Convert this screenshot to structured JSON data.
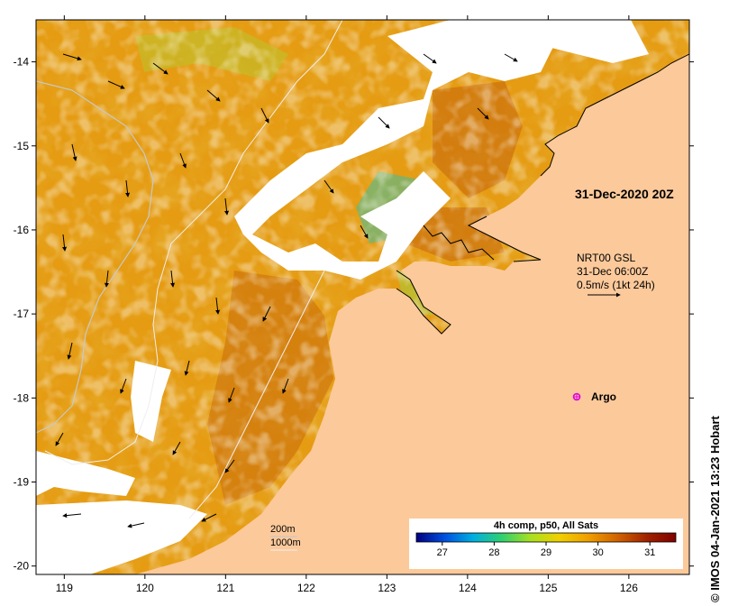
{
  "map": {
    "lon_ticks": [
      "119",
      "120",
      "121",
      "122",
      "123",
      "124",
      "125",
      "126"
    ],
    "lat_ticks": [
      "-14",
      "-15",
      "-16",
      "-17",
      "-18",
      "-19",
      "-20"
    ],
    "lon_range": [
      118.65,
      126.75
    ],
    "lat_range": [
      -20.1,
      -13.5
    ],
    "land_color": "#fcc99b",
    "ocean_color": "#d8860c"
  },
  "annotations": {
    "date": "31-Dec-2020 20Z",
    "current_source": "NRT00 GSL",
    "current_time": "31-Dec 06:00Z",
    "current_scale": "0.5m/s (1kt 24h)",
    "argo_label": "Argo",
    "depth_200": "200m",
    "depth_1000": "1000m"
  },
  "colorbar": {
    "title": "4h comp, p50, All Sats",
    "ticks": [
      "27",
      "28",
      "29",
      "30",
      "31"
    ],
    "range": [
      26.5,
      31.5
    ],
    "colors": [
      "#000080",
      "#0050e0",
      "#00b0e0",
      "#30d070",
      "#a8e020",
      "#f0d000",
      "#f0a000",
      "#d06000",
      "#a02000",
      "#800000"
    ]
  },
  "credit": "IMOS 04-Jan-2021 13:23 Hobart",
  "credit_symbol": "©"
}
